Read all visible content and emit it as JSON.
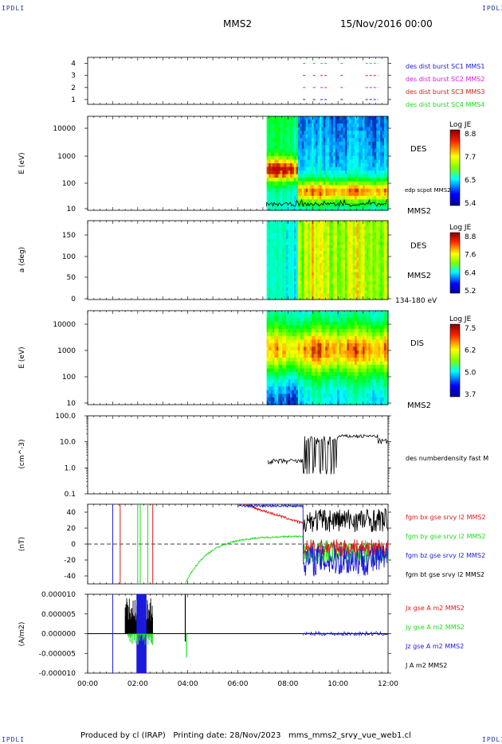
{
  "header": {
    "logo": "IPDLI",
    "spacecraft": "MMS2",
    "datetime": "15/Nov/2016 00:00"
  },
  "footer": {
    "produced": "Produced by cl (IRAP)",
    "date": "Printing date: 28/Nov/2023",
    "file": "mms_mms2_srvy_vue_web1.cl"
  },
  "colors": {
    "blue": "#1a1adc",
    "magenta": "#d81ad8",
    "red": "#dc1a1a",
    "green": "#1adc1a",
    "black": "#000000"
  },
  "chart_data": [
    {
      "type": "scatter",
      "panel": "burst-availability",
      "ylim": [
        0.6,
        4.5
      ],
      "yticks": [
        "1",
        "2",
        "3",
        "4"
      ],
      "legend": [
        {
          "label": "des dist burst SC1 MMS1",
          "color": "#1a1adc"
        },
        {
          "label": "des dist burst SC2 MMS2",
          "color": "#d81ad8"
        },
        {
          "label": "des dist burst SC3 MMS3",
          "color": "#dc1a1a"
        },
        {
          "label": "des dist burst SC4 MMS4",
          "color": "#1adc1a"
        }
      ],
      "segments_hours": [
        {
          "sc": 1,
          "ranges": [
            [
              8.6,
              8.7
            ],
            [
              9.0,
              9.1
            ],
            [
              9.3,
              9.6
            ],
            [
              10.1,
              10.2
            ],
            [
              11.1,
              11.6
            ]
          ]
        },
        {
          "sc": 2,
          "ranges": [
            [
              8.6,
              8.7
            ],
            [
              9.0,
              9.1
            ],
            [
              9.3,
              9.6
            ],
            [
              10.1,
              10.2
            ],
            [
              11.1,
              11.6
            ]
          ]
        },
        {
          "sc": 3,
          "ranges": [
            [
              8.6,
              8.7
            ],
            [
              9.0,
              9.1
            ],
            [
              9.3,
              9.6
            ],
            [
              10.1,
              10.2
            ],
            [
              11.1,
              11.6
            ]
          ]
        },
        {
          "sc": 4,
          "ranges": [
            [
              8.6,
              8.7
            ],
            [
              9.0,
              9.1
            ],
            [
              9.3,
              9.6
            ],
            [
              10.1,
              10.2
            ],
            [
              11.1,
              11.6
            ]
          ]
        }
      ]
    },
    {
      "type": "heatmap",
      "panel": "des-energy",
      "ylabel": "E (eV)",
      "yscale": "log",
      "ylim": [
        10,
        30000
      ],
      "yticks": [
        "10",
        "100",
        "1000",
        "10000"
      ],
      "label": "DES",
      "overlay": "edp scpot MMS2",
      "spacecraft": "MMS2",
      "colorbar": {
        "title": "Log JE",
        "ticks": [
          "8.8",
          "7.7",
          "6.5",
          "5.4"
        ]
      },
      "data_start_hour": 7.15
    },
    {
      "type": "heatmap",
      "panel": "des-pitch-angle",
      "ylabel": "a (deg)",
      "ylim": [
        0,
        180
      ],
      "yticks": [
        "0",
        "50",
        "100",
        "150"
      ],
      "label": "DES",
      "spacecraft": "MMS2",
      "energy_band": "134-180 eV",
      "colorbar": {
        "title": "Log JE",
        "ticks": [
          "8.8",
          "7.6",
          "6.4",
          "5.2"
        ]
      },
      "data_start_hour": 7.15
    },
    {
      "type": "heatmap",
      "panel": "dis-energy",
      "ylabel": "E (eV)",
      "yscale": "log",
      "ylim": [
        10,
        30000
      ],
      "yticks": [
        "10",
        "100",
        "1000",
        "10000"
      ],
      "label": "DIS",
      "spacecraft": "MMS2",
      "colorbar": {
        "title": "Log JE",
        "ticks": [
          "7.5",
          "6.2",
          "5.0",
          "3.7"
        ]
      },
      "data_start_hour": 7.15
    },
    {
      "type": "line",
      "panel": "density",
      "ylabel": "(cm^-3)",
      "yscale": "log",
      "ylim": [
        0.1,
        100
      ],
      "yticks": [
        "0.1",
        "1.0",
        "10.0",
        "100.0"
      ],
      "series": [
        {
          "name": "des numberdensity fast M",
          "color": "#000000"
        }
      ]
    },
    {
      "type": "line",
      "panel": "magnetic-field",
      "ylabel": "(nT)",
      "ylim": [
        -50,
        50
      ],
      "yticks": [
        "-40",
        "-20",
        "0",
        "20",
        "40"
      ],
      "series": [
        {
          "name": "fgm bx gse srvy l2 MMS2",
          "color": "#dc1a1a"
        },
        {
          "name": "fgm by gse srvy l2 MMS2",
          "color": "#1adc1a"
        },
        {
          "name": "fgm bz gse srvy l2 MMS2",
          "color": "#1a1adc"
        },
        {
          "name": "fgm bt gse srvy l2 MMS2",
          "color": "#000000"
        }
      ]
    },
    {
      "type": "line",
      "panel": "current-density",
      "ylabel": "(A/m2)",
      "ylim": [
        -1e-05,
        1e-05
      ],
      "yticks": [
        "-0.000010",
        "-0.000005",
        "0.000000",
        "0.000005",
        "0.000010"
      ],
      "series": [
        {
          "name": "Jx gse A m2 MMS2",
          "color": "#dc1a1a"
        },
        {
          "name": "Jy gse A m2 MMS2",
          "color": "#1adc1a"
        },
        {
          "name": "Jz gse A m2 MMS2",
          "color": "#1a1adc"
        },
        {
          "name": "J A m2 MMS2",
          "color": "#000000"
        }
      ],
      "xticks": [
        "00:00",
        "02:00",
        "04:00",
        "06:00",
        "08:00",
        "10:00",
        "12:00"
      ],
      "xlim_hours": [
        0,
        12
      ]
    }
  ]
}
